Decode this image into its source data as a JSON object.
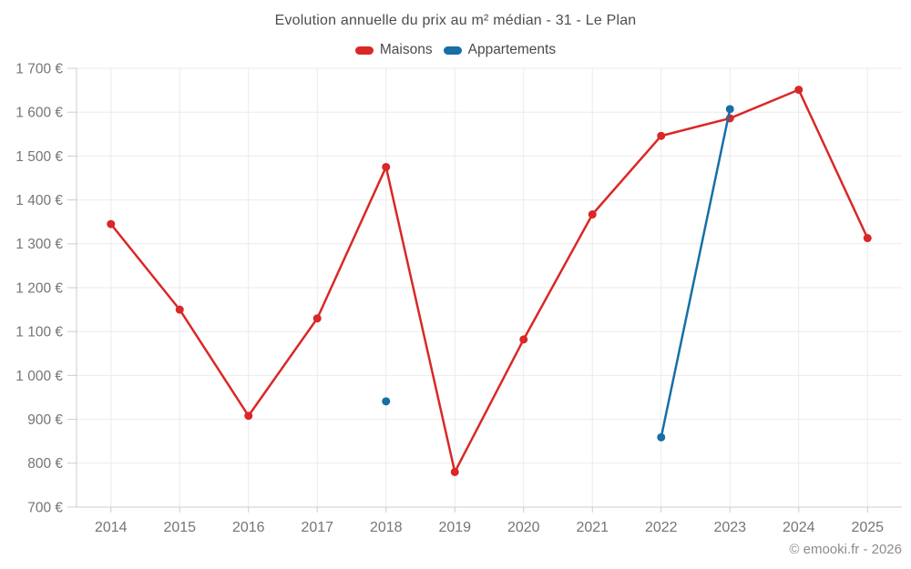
{
  "chart_data": {
    "type": "line",
    "title": "Evolution annuelle du prix au m² médian - 31 - Le Plan",
    "categories": [
      "2014",
      "2015",
      "2016",
      "2017",
      "2018",
      "2019",
      "2020",
      "2021",
      "2022",
      "2023",
      "2024",
      "2025"
    ],
    "series": [
      {
        "name": "Maisons",
        "color": "#d92827",
        "values": [
          1345,
          1150,
          908,
          1130,
          1475,
          780,
          1082,
          1367,
          1546,
          1586,
          1651,
          1313
        ]
      },
      {
        "name": "Appartements",
        "color": "#176fa5",
        "values": [
          null,
          null,
          null,
          null,
          941,
          null,
          null,
          null,
          859,
          1607,
          null,
          null
        ]
      }
    ],
    "ylim": [
      700,
      1700
    ],
    "ytick_step": 100,
    "y_tick_suffix": " €",
    "grid": true,
    "legend_position": "top-center",
    "marker_radius": 4.5,
    "line_width": 2.5
  },
  "footer": {
    "copyright": "© emooki.fr - 2026"
  },
  "theme": {
    "background": "#ffffff",
    "grid_color": "#ebebeb",
    "axis_color": "#cccccc",
    "tick_label_color": "#757575",
    "title_color": "#4d4d4d",
    "legend_label_color": "#4a4a4a",
    "footer_color": "#8c8c8c"
  }
}
